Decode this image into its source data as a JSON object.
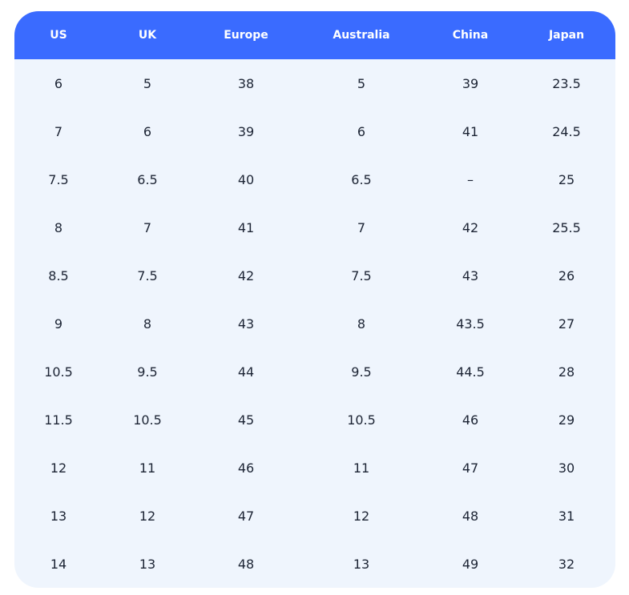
{
  "table": {
    "header": [
      "US",
      "UK",
      "Europe",
      "Australia",
      "China",
      "Japan"
    ],
    "rows": [
      [
        "6",
        "5",
        "38",
        "5",
        "39",
        "23.5"
      ],
      [
        "7",
        "6",
        "39",
        "6",
        "41",
        "24.5"
      ],
      [
        "7.5",
        "6.5",
        "40",
        "6.5",
        "–",
        "25"
      ],
      [
        "8",
        "7",
        "41",
        "7",
        "42",
        "25.5"
      ],
      [
        "8.5",
        "7.5",
        "42",
        "7.5",
        "43",
        "26"
      ],
      [
        "9",
        "8",
        "43",
        "8",
        "43.5",
        "27"
      ],
      [
        "10.5",
        "9.5",
        "44",
        "9.5",
        "44.5",
        "28"
      ],
      [
        "11.5",
        "10.5",
        "45",
        "10.5",
        "46",
        "29"
      ],
      [
        "12",
        "11",
        "46",
        "11",
        "47",
        "30"
      ],
      [
        "13",
        "12",
        "47",
        "12",
        "48",
        "31"
      ],
      [
        "14",
        "13",
        "48",
        "13",
        "49",
        "32"
      ]
    ]
  }
}
